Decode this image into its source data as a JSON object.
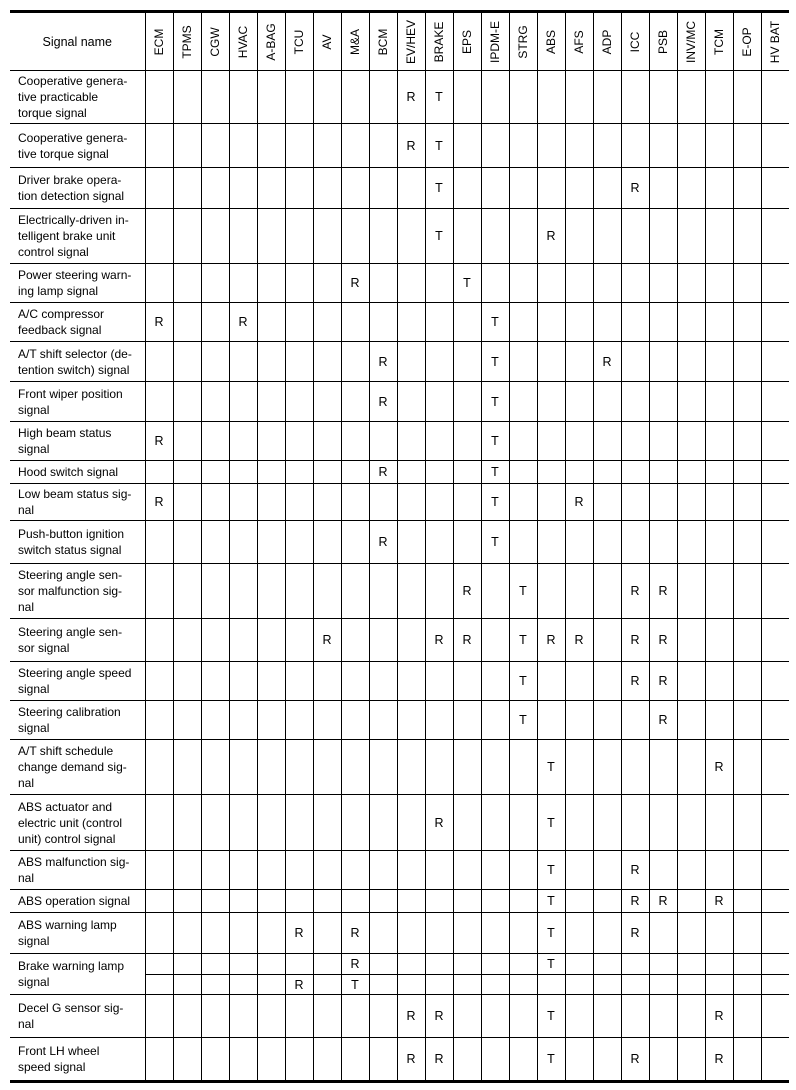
{
  "header": {
    "signal_name": "Signal name",
    "modules": [
      "ECM",
      "TPMS",
      "CGW",
      "HVAC",
      "A-BAG",
      "TCU",
      "AV",
      "M&A",
      "BCM",
      "EV/HEV",
      "BRAKE",
      "EPS",
      "IPDM-E",
      "STRG",
      "ABS",
      "AFS",
      "ADP",
      "ICC",
      "PSB",
      "INV/MC",
      "TCM",
      "E-OP",
      "HV BAT"
    ]
  },
  "rows": [
    {
      "name": "Cooperative genera-\ntive practicable\ntorque signal",
      "marks": [
        {
          "EV/HEV": "R",
          "BRAKE": "T"
        }
      ]
    },
    {
      "name": "Cooperative genera-\ntive torque signal",
      "marks": [
        {
          "EV/HEV": "R",
          "BRAKE": "T"
        }
      ]
    },
    {
      "name": "Driver brake opera-\ntion detection signal",
      "marks": [
        {
          "BRAKE": "T",
          "ICC": "R"
        }
      ]
    },
    {
      "name": "Electrically-driven in-\ntelligent brake unit\ncontrol signal",
      "marks": [
        {
          "BRAKE": "T",
          "ABS": "R"
        }
      ]
    },
    {
      "name": "Power steering warn-\ning lamp signal",
      "marks": [
        {
          "M&A": "R",
          "EPS": "T"
        }
      ]
    },
    {
      "name": "A/C compressor\nfeedback signal",
      "marks": [
        {
          "ECM": "R",
          "HVAC": "R",
          "IPDM-E": "T"
        }
      ]
    },
    {
      "name": "A/T shift selector (de-\ntention switch) signal",
      "marks": [
        {
          "BCM": "R",
          "IPDM-E": "T",
          "ADP": "R"
        }
      ]
    },
    {
      "name": "Front wiper position\nsignal",
      "marks": [
        {
          "BCM": "R",
          "IPDM-E": "T"
        }
      ]
    },
    {
      "name": "High beam status\nsignal",
      "marks": [
        {
          "ECM": "R",
          "IPDM-E": "T"
        }
      ]
    },
    {
      "name": "Hood switch signal",
      "marks": [
        {
          "BCM": "R",
          "IPDM-E": "T"
        }
      ]
    },
    {
      "name": "Low beam status sig-\nnal",
      "marks": [
        {
          "ECM": "R",
          "IPDM-E": "T",
          "AFS": "R"
        }
      ]
    },
    {
      "name": "Push-button ignition\nswitch status signal",
      "marks": [
        {
          "BCM": "R",
          "IPDM-E": "T"
        }
      ]
    },
    {
      "name": "Steering angle sen-\nsor malfunction sig-\nnal",
      "marks": [
        {
          "EPS": "R",
          "STRG": "T",
          "ICC": "R",
          "PSB": "R"
        }
      ]
    },
    {
      "name": "Steering angle sen-\nsor signal",
      "marks": [
        {
          "AV": "R",
          "BRAKE": "R",
          "EPS": "R",
          "STRG": "T",
          "ABS": "R",
          "AFS": "R",
          "ICC": "R",
          "PSB": "R"
        }
      ]
    },
    {
      "name": "Steering angle speed\nsignal",
      "marks": [
        {
          "STRG": "T",
          "ICC": "R",
          "PSB": "R"
        }
      ]
    },
    {
      "name": "Steering calibration\nsignal",
      "marks": [
        {
          "STRG": "T",
          "PSB": "R"
        }
      ]
    },
    {
      "name": "A/T shift schedule\nchange demand sig-\nnal",
      "marks": [
        {
          "ABS": "T",
          "TCM": "R"
        }
      ]
    },
    {
      "name": "ABS actuator and\nelectric unit (control\nunit) control signal",
      "marks": [
        {
          "BRAKE": "R",
          "ABS": "T"
        }
      ]
    },
    {
      "name": "ABS malfunction sig-\nnal",
      "marks": [
        {
          "ABS": "T",
          "ICC": "R"
        }
      ]
    },
    {
      "name": "ABS operation signal",
      "marks": [
        {
          "ABS": "T",
          "ICC": "R",
          "PSB": "R",
          "TCM": "R"
        }
      ]
    },
    {
      "name": "ABS warning lamp\nsignal",
      "marks": [
        {
          "TCU": "R",
          "M&A": "R",
          "ABS": "T",
          "ICC": "R"
        }
      ]
    },
    {
      "name": "Brake warning lamp\nsignal",
      "marks": [
        {
          "M&A": "R",
          "ABS": "T"
        },
        {
          "TCU": "R",
          "M&A": "T"
        }
      ]
    },
    {
      "name": "Decel G sensor sig-\nnal",
      "marks": [
        {
          "EV/HEV": "R",
          "BRAKE": "R",
          "ABS": "T",
          "TCM": "R"
        }
      ]
    },
    {
      "name": "Front LH wheel\nspeed signal",
      "marks": [
        {
          "EV/HEV": "R",
          "BRAKE": "R",
          "ABS": "T",
          "ICC": "R",
          "TCM": "R"
        }
      ]
    }
  ]
}
